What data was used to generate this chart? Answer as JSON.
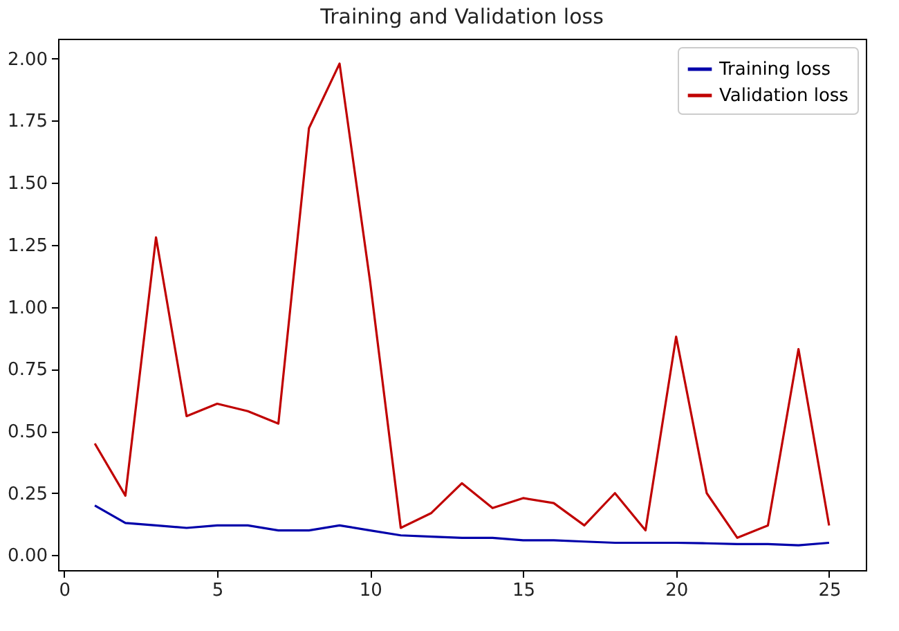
{
  "chart_data": {
    "type": "line",
    "title": "Training and Validation loss",
    "x": [
      1,
      2,
      3,
      4,
      5,
      6,
      7,
      8,
      9,
      10,
      11,
      12,
      13,
      14,
      15,
      16,
      17,
      18,
      19,
      20,
      21,
      22,
      23,
      24,
      25
    ],
    "series": [
      {
        "name": "Training loss",
        "color": "#0000aa",
        "values": [
          0.2,
          0.13,
          0.12,
          0.11,
          0.12,
          0.12,
          0.1,
          0.1,
          0.12,
          0.1,
          0.08,
          0.075,
          0.07,
          0.07,
          0.06,
          0.06,
          0.055,
          0.05,
          0.05,
          0.05,
          0.048,
          0.045,
          0.045,
          0.04,
          0.05
        ]
      },
      {
        "name": "Validation loss",
        "color": "#c00000",
        "values": [
          0.45,
          0.24,
          1.28,
          0.56,
          0.61,
          0.58,
          0.53,
          1.72,
          1.98,
          1.1,
          0.11,
          0.17,
          0.29,
          0.19,
          0.23,
          0.21,
          0.12,
          0.25,
          0.1,
          0.88,
          0.25,
          0.07,
          0.12,
          0.83,
          0.12
        ]
      }
    ],
    "xlim": [
      -0.2,
      26.2
    ],
    "xticks": [
      0,
      5,
      10,
      15,
      20,
      25
    ],
    "ylim": [
      -0.06,
      2.08
    ],
    "yticks": [
      {
        "value": 0,
        "label": "0.00"
      },
      {
        "value": 0.25,
        "label": "0.25"
      },
      {
        "value": 0.5,
        "label": "0.50"
      },
      {
        "value": 0.75,
        "label": "0.75"
      },
      {
        "value": 1,
        "label": "1.00"
      },
      {
        "value": 1.25,
        "label": "1.25"
      },
      {
        "value": 1.5,
        "label": "1.50"
      },
      {
        "value": 1.75,
        "label": "1.75"
      },
      {
        "value": 2,
        "label": "2.00"
      }
    ],
    "grid": false,
    "legend": "top right",
    "marker": "none",
    "line_style": "solid"
  }
}
